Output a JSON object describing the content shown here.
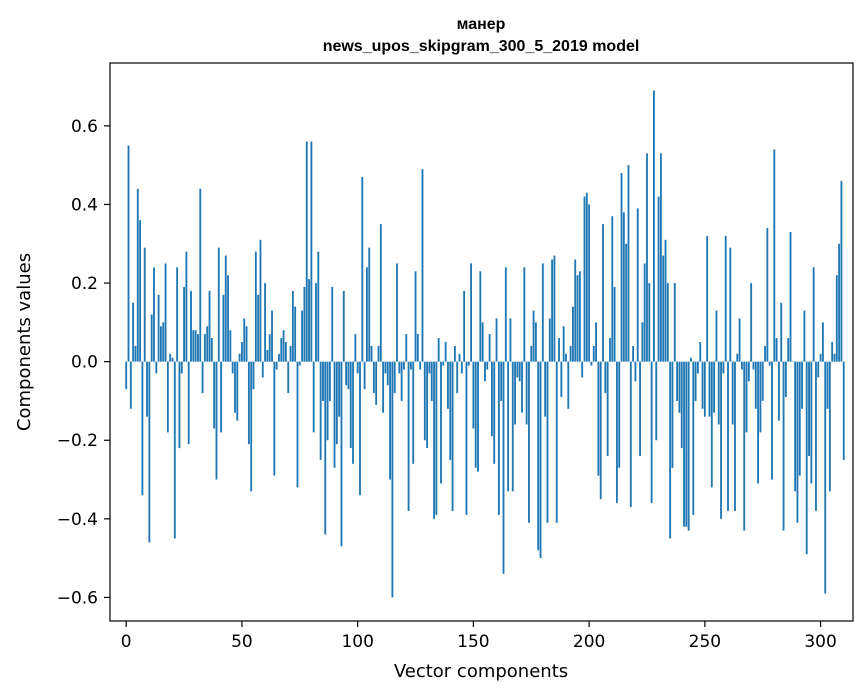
{
  "chart_data": {
    "type": "bar",
    "title_line1": "манер",
    "title_line2": "news_upos_skipgram_300_5_2019 model",
    "xlabel": "Vector components",
    "ylabel": "Components values",
    "xlim": [
      -7,
      314
    ],
    "ylim": [
      -0.66,
      0.76
    ],
    "xticks": [
      0,
      50,
      100,
      150,
      200,
      250,
      300
    ],
    "yticks": [
      -0.6,
      -0.4,
      -0.2,
      0.0,
      0.2,
      0.4,
      0.6
    ],
    "ytick_labels": [
      "−0.6",
      "−0.4",
      "−0.2",
      "0.0",
      "0.2",
      "0.4",
      "0.6"
    ],
    "bar_color": "#1f77b4",
    "values": [
      -0.07,
      0.55,
      -0.12,
      0.15,
      0.04,
      0.44,
      0.36,
      -0.34,
      0.29,
      -0.14,
      -0.46,
      0.12,
      0.24,
      -0.03,
      0.17,
      0.09,
      0.1,
      0.25,
      -0.18,
      0.02,
      0.01,
      -0.45,
      0.24,
      -0.22,
      -0.03,
      0.19,
      0.28,
      -0.21,
      0.18,
      0.08,
      0.08,
      0.07,
      0.44,
      -0.08,
      0.07,
      0.09,
      0.18,
      0.06,
      -0.17,
      -0.3,
      0.29,
      -0.18,
      0.17,
      0.27,
      0.22,
      0.08,
      -0.03,
      -0.13,
      -0.15,
      0.02,
      0.05,
      0.11,
      0.09,
      -0.21,
      -0.33,
      -0.07,
      0.28,
      0.17,
      0.31,
      -0.04,
      0.2,
      0.03,
      0.07,
      0.13,
      -0.29,
      -0.02,
      0.02,
      0.06,
      0.08,
      0.05,
      -0.08,
      0.04,
      0.18,
      0.14,
      -0.32,
      -0.01,
      0.13,
      0.19,
      0.56,
      0.21,
      0.56,
      -0.18,
      0.2,
      0.28,
      -0.25,
      -0.1,
      -0.44,
      -0.2,
      -0.1,
      0.19,
      -0.27,
      -0.21,
      -0.14,
      -0.47,
      0.18,
      -0.06,
      -0.07,
      -0.22,
      -0.26,
      0.07,
      -0.03,
      -0.34,
      0.47,
      -0.07,
      0.24,
      0.29,
      0.04,
      -0.08,
      -0.11,
      0.04,
      0.35,
      -0.13,
      -0.03,
      -0.06,
      -0.3,
      -0.6,
      -0.08,
      0.25,
      -0.03,
      -0.1,
      -0.02,
      0.07,
      -0.38,
      -0.02,
      -0.26,
      0.23,
      0.07,
      -0.02,
      0.49,
      -0.2,
      -0.22,
      -0.03,
      -0.1,
      -0.4,
      -0.39,
      0.06,
      -0.31,
      -0.01,
      0.05,
      -0.12,
      -0.25,
      -0.38,
      0.04,
      -0.08,
      0.02,
      -0.03,
      0.18,
      -0.39,
      -0.01,
      0.25,
      -0.17,
      -0.27,
      -0.28,
      0.23,
      0.1,
      -0.05,
      -0.02,
      0.07,
      -0.19,
      -0.26,
      0.11,
      -0.39,
      -0.1,
      -0.54,
      0.24,
      -0.33,
      0.11,
      -0.33,
      -0.16,
      -0.04,
      -0.05,
      -0.13,
      0.24,
      -0.16,
      -0.41,
      0.04,
      0.13,
      0.1,
      -0.48,
      -0.5,
      0.25,
      -0.14,
      -0.41,
      0.11,
      0.26,
      0.27,
      -0.41,
      0.06,
      -0.09,
      0.09,
      0.02,
      -0.12,
      0.04,
      0.14,
      0.26,
      0.22,
      0.23,
      -0.04,
      0.42,
      0.43,
      0.4,
      -0.01,
      0.04,
      0.1,
      -0.29,
      -0.35,
      0.35,
      -0.08,
      -0.24,
      0.06,
      0.37,
      0.19,
      -0.36,
      -0.27,
      0.48,
      0.38,
      0.3,
      0.5,
      -0.37,
      0.04,
      -0.05,
      0.39,
      -0.24,
      0.1,
      0.25,
      0.53,
      0.2,
      -0.36,
      0.69,
      -0.2,
      0.42,
      0.53,
      0.27,
      0.31,
      0.2,
      -0.45,
      -0.27,
      0.2,
      -0.1,
      -0.13,
      -0.22,
      -0.42,
      -0.42,
      -0.43,
      0.01,
      -0.39,
      -0.1,
      -0.03,
      0.05,
      -0.12,
      -0.14,
      0.32,
      -0.14,
      -0.32,
      -0.13,
      0.13,
      -0.16,
      -0.4,
      -0.03,
      0.32,
      -0.38,
      0.29,
      -0.16,
      -0.38,
      0.02,
      0.11,
      -0.02,
      -0.43,
      -0.18,
      -0.05,
      0.2,
      -0.02,
      -0.12,
      -0.31,
      -0.18,
      -0.1,
      0.04,
      0.34,
      -0.01,
      -0.3,
      0.54,
      0.06,
      -0.15,
      0.15,
      -0.43,
      -0.09,
      0.06,
      0.33,
      0.0,
      -0.33,
      -0.41,
      -0.29,
      -0.12,
      0.13,
      -0.49,
      -0.24,
      -0.31,
      0.24,
      -0.38,
      -0.04,
      0.02,
      0.1,
      -0.59,
      -0.12,
      -0.33,
      0.05,
      0.02,
      0.22,
      0.3,
      0.46,
      -0.25
    ]
  }
}
